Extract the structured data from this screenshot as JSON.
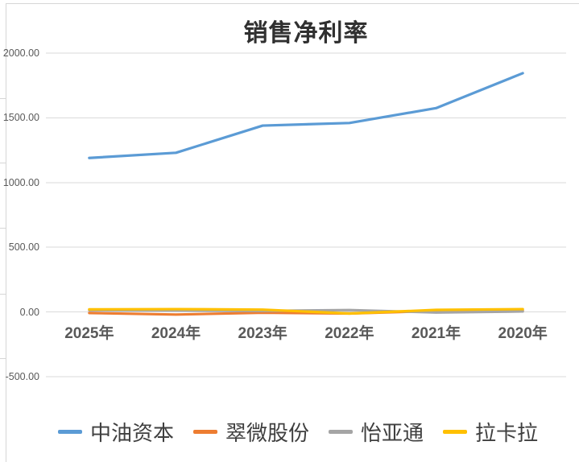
{
  "chart_data": {
    "type": "line",
    "title": "销售净利率",
    "categories": [
      "2025年",
      "2024年",
      "2023年",
      "2022年",
      "2021年",
      "2020年"
    ],
    "series": [
      {
        "name": "中油资本",
        "color": "#5B9BD5",
        "values": [
          1190,
          1230,
          1440,
          1460,
          1575,
          1845
        ]
      },
      {
        "name": "翠微股份",
        "color": "#ED7D31",
        "values": [
          -8,
          -20,
          -6,
          -12,
          8,
          12
        ]
      },
      {
        "name": "怡亚通",
        "color": "#A5A5A5",
        "values": [
          14,
          12,
          8,
          15,
          -4,
          4
        ]
      },
      {
        "name": "拉卡拉",
        "color": "#FFC000",
        "values": [
          20,
          22,
          18,
          -12,
          16,
          22
        ]
      }
    ],
    "ylim": [
      -500,
      2000
    ],
    "ytick_interval": 500,
    "ytick_labels": [
      "2000.00",
      "1500.00",
      "1000.00",
      "500.00",
      "0.00",
      "-500.00"
    ],
    "grid": true,
    "gridline_color": "#dadada",
    "legend_position": "bottom"
  }
}
